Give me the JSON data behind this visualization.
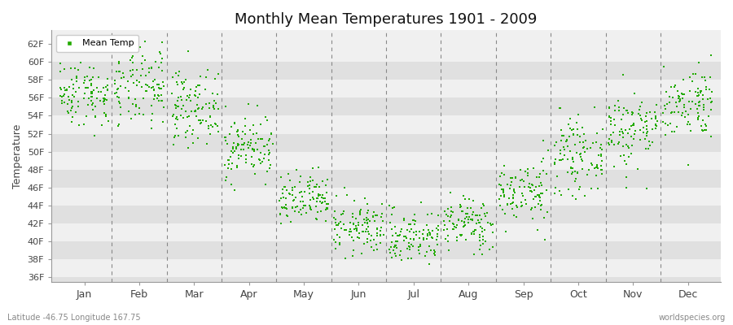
{
  "title": "Monthly Mean Temperatures 1901 - 2009",
  "ylabel": "Temperature",
  "xlabel_labels": [
    "Jan",
    "Feb",
    "Mar",
    "Apr",
    "May",
    "Jun",
    "Jul",
    "Aug",
    "Sep",
    "Oct",
    "Nov",
    "Dec"
  ],
  "ytick_labels": [
    "36F",
    "38F",
    "40F",
    "42F",
    "44F",
    "46F",
    "48F",
    "50F",
    "52F",
    "54F",
    "56F",
    "58F",
    "60F",
    "62F"
  ],
  "ytick_values": [
    36,
    38,
    40,
    42,
    44,
    46,
    48,
    50,
    52,
    54,
    56,
    58,
    60,
    62
  ],
  "ylim": [
    35.5,
    63.5
  ],
  "dot_color": "#22aa00",
  "dot_size": 3,
  "background_color": "#ffffff",
  "plot_bg_light": "#f0f0f0",
  "plot_bg_dark": "#e0e0e0",
  "dashed_line_color": "#888888",
  "footer_left": "Latitude -46.75 Longitude 167.75",
  "footer_right": "worldspecies.org",
  "legend_label": "Mean Temp",
  "years": 109,
  "monthly_means": [
    56.5,
    57.0,
    55.0,
    50.5,
    44.5,
    41.5,
    40.5,
    42.0,
    45.5,
    49.5,
    52.5,
    55.5
  ],
  "monthly_stds": [
    1.8,
    2.2,
    2.0,
    1.8,
    1.5,
    1.5,
    1.5,
    1.5,
    1.8,
    2.0,
    2.2,
    2.0
  ]
}
